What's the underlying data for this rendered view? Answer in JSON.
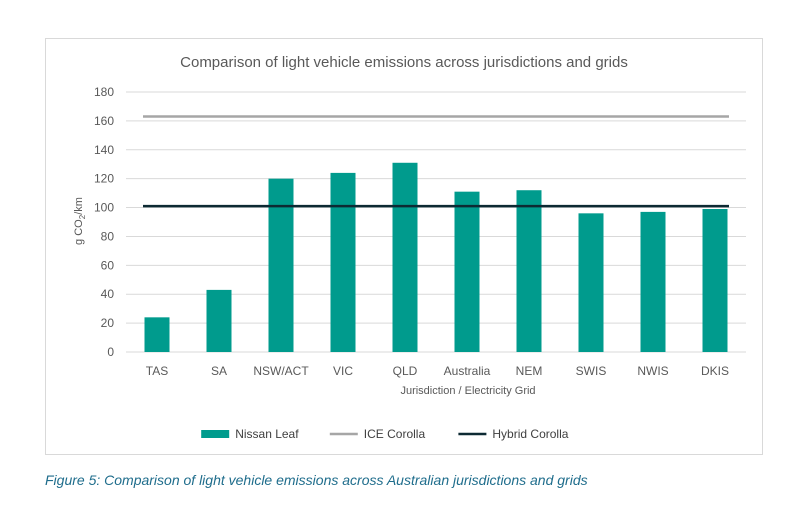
{
  "chart_data": {
    "type": "bar",
    "title": "Comparison of light vehicle emissions across jurisdictions and grids",
    "xlabel": "Jurisdiction / Electricity Grid",
    "ylabel_prefix": "g CO",
    "ylabel_sub": "2",
    "ylabel_suffix": "/km",
    "categories": [
      "TAS",
      "SA",
      "NSW/ACT",
      "VIC",
      "QLD",
      "Australia",
      "NEM",
      "SWIS",
      "NWIS",
      "DKIS"
    ],
    "series": [
      {
        "name": "Nissan Leaf",
        "type": "bar",
        "color": "#009b8d",
        "values": [
          24,
          43,
          120,
          124,
          131,
          111,
          112,
          96,
          97,
          99
        ]
      },
      {
        "name": "ICE Corolla",
        "type": "line",
        "color": "#a6a6a6",
        "values": [
          163,
          163,
          163,
          163,
          163,
          163,
          163,
          163,
          163,
          163
        ]
      },
      {
        "name": "Hybrid Corolla",
        "type": "line",
        "color": "#0d2a33",
        "values": [
          101,
          101,
          101,
          101,
          101,
          101,
          101,
          101,
          101,
          101
        ]
      }
    ],
    "ylim": [
      0,
      180
    ],
    "yticks": [
      0,
      20,
      40,
      60,
      80,
      100,
      120,
      140,
      160,
      180
    ],
    "grid": true,
    "legend": "bottom"
  },
  "caption": "Figure 5: Comparison of light vehicle emissions across Australian jurisdictions and grids"
}
